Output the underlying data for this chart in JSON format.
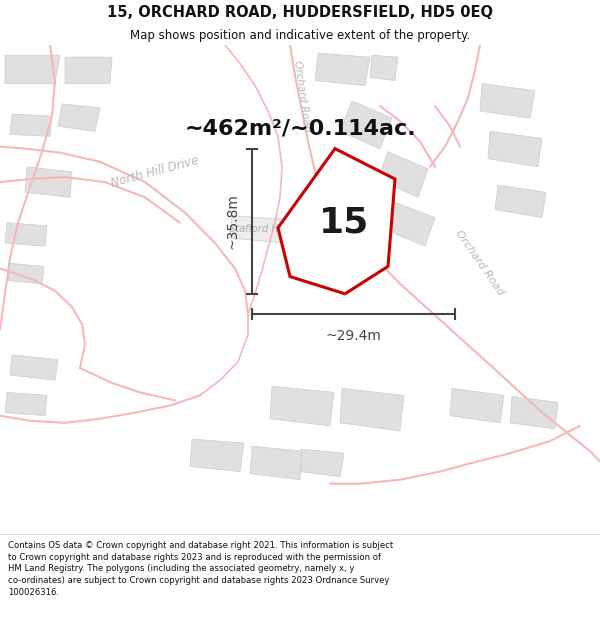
{
  "title": "15, ORCHARD ROAD, HUDDERSFIELD, HD5 0EQ",
  "subtitle": "Map shows position and indicative extent of the property.",
  "area_text": "~462m²/~0.114ac.",
  "label_15": "15",
  "dim_height": "~35.8m",
  "dim_width": "~29.4m",
  "footer": "Contains OS data © Crown copyright and database right 2021. This information is subject to Crown copyright and database rights 2023 and is reproduced with the permission of HM Land Registry. The polygons (including the associated geometry, namely x, y co-ordinates) are subject to Crown copyright and database rights 2023 Ordnance Survey 100026316.",
  "map_bg": "#f8f8f8",
  "title_color": "#111111",
  "road_color": "#f5b8b8",
  "building_fill": "#e0e0e0",
  "building_edge": "#cccccc",
  "property_fill": "#ffffff",
  "property_edge": "#cc0000",
  "dim_color": "#444444",
  "road_label": "#c0c0c0",
  "place_label": "#b0b0b0",
  "area_color": "#111111",
  "stafford_fill": "#ececec",
  "stafford_edge": "#cccccc"
}
